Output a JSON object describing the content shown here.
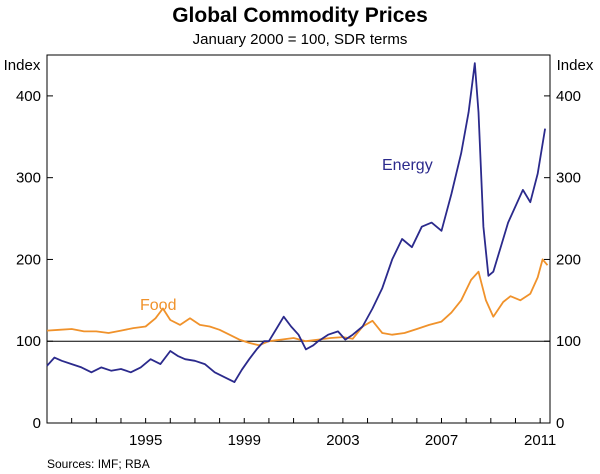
{
  "chart_data": {
    "type": "line",
    "title": "Global Commodity Prices",
    "subtitle": "January 2000 = 100, SDR terms",
    "ylabel_left": "Index",
    "ylabel_right": "Index",
    "ylim": [
      0,
      450
    ],
    "yticks": [
      0,
      100,
      200,
      300,
      400
    ],
    "xlim": [
      1991.0,
      2011.4
    ],
    "xticks": [
      1995,
      1999,
      2003,
      2007,
      2011
    ],
    "reference_line": 100,
    "source": "Sources: IMF; RBA",
    "series": [
      {
        "name": "Energy",
        "color": "#2b2a8c",
        "x": [
          1991.0,
          1991.3,
          1991.6,
          1992.0,
          1992.4,
          1992.8,
          1993.2,
          1993.6,
          1994.0,
          1994.4,
          1994.8,
          1995.2,
          1995.6,
          1996.0,
          1996.3,
          1996.6,
          1997.0,
          1997.4,
          1997.8,
          1998.2,
          1998.6,
          1998.9,
          1999.2,
          1999.5,
          1999.8,
          2000.0,
          2000.3,
          2000.6,
          2000.9,
          2001.2,
          2001.5,
          2001.8,
          2002.0,
          2002.4,
          2002.8,
          2003.1,
          2003.4,
          2003.8,
          2004.2,
          2004.6,
          2005.0,
          2005.4,
          2005.8,
          2006.2,
          2006.6,
          2007.0,
          2007.4,
          2007.8,
          2008.1,
          2008.35,
          2008.5,
          2008.7,
          2008.9,
          2009.1,
          2009.4,
          2009.7,
          2010.0,
          2010.3,
          2010.6,
          2010.9,
          2011.2
        ],
        "values": [
          70,
          80,
          76,
          72,
          68,
          62,
          68,
          64,
          66,
          62,
          68,
          78,
          72,
          88,
          82,
          78,
          76,
          72,
          62,
          56,
          50,
          65,
          78,
          90,
          100,
          100,
          115,
          130,
          118,
          108,
          90,
          95,
          100,
          108,
          112,
          102,
          108,
          118,
          140,
          165,
          200,
          225,
          215,
          240,
          245,
          235,
          280,
          330,
          380,
          440,
          380,
          240,
          180,
          185,
          215,
          245,
          265,
          285,
          270,
          305,
          360
        ]
      },
      {
        "name": "Food",
        "color": "#f0922b",
        "x": [
          1991.0,
          1991.5,
          1992.0,
          1992.5,
          1993.0,
          1993.5,
          1994.0,
          1994.5,
          1995.0,
          1995.4,
          1995.7,
          1996.0,
          1996.4,
          1996.8,
          1997.2,
          1997.6,
          1998.0,
          1998.4,
          1998.8,
          1999.2,
          1999.6,
          2000.0,
          2000.5,
          2001.0,
          2001.5,
          2002.0,
          2002.5,
          2003.0,
          2003.4,
          2003.8,
          2004.2,
          2004.6,
          2005.0,
          2005.5,
          2006.0,
          2006.5,
          2007.0,
          2007.4,
          2007.8,
          2008.2,
          2008.5,
          2008.8,
          2009.1,
          2009.5,
          2009.8,
          2010.2,
          2010.6,
          2010.9,
          2011.1,
          2011.3
        ],
        "values": [
          113,
          114,
          115,
          112,
          112,
          110,
          113,
          116,
          118,
          128,
          140,
          126,
          120,
          128,
          120,
          118,
          114,
          108,
          102,
          98,
          95,
          100,
          102,
          104,
          100,
          102,
          104,
          105,
          103,
          118,
          125,
          110,
          108,
          110,
          115,
          120,
          124,
          135,
          150,
          175,
          185,
          150,
          130,
          148,
          155,
          150,
          158,
          178,
          200,
          193
        ]
      }
    ],
    "annotations": [
      {
        "text": "Energy",
        "series": "Energy"
      },
      {
        "text": "Food",
        "series": "Food"
      }
    ]
  }
}
